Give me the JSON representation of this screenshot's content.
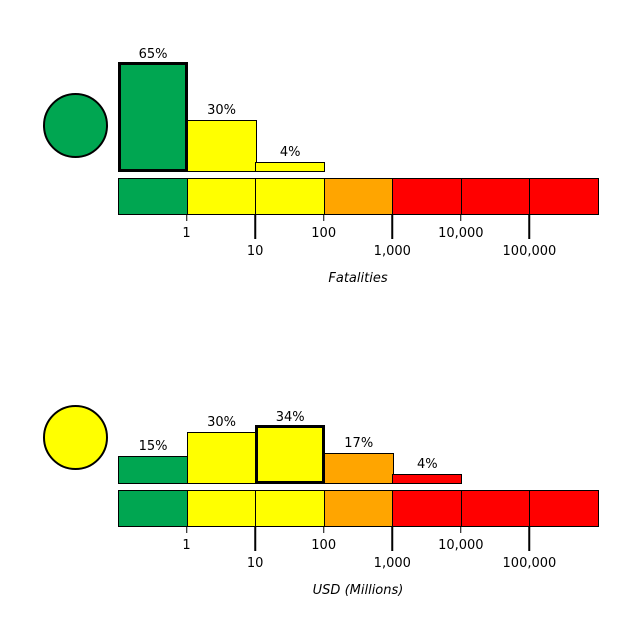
{
  "colors": {
    "green": "#00a651",
    "yellow": "#ffff00",
    "orange": "#ffa500",
    "red": "#ff0000",
    "outline": "#000000"
  },
  "chart_data": [
    {
      "type": "bar",
      "id": "fatalities",
      "xlabel": "Fatalities",
      "x_scale": "log",
      "tick_labels": [
        "1",
        "10",
        "100",
        "1,000",
        "10,000",
        "100,000"
      ],
      "scale_segments": [
        "green",
        "yellow",
        "yellow",
        "orange",
        "red",
        "red",
        "red"
      ],
      "indicator_color": "green",
      "bars": [
        {
          "label": "65%",
          "value": 65,
          "segment": 0,
          "color": "green",
          "highlighted": true
        },
        {
          "label": "30%",
          "value": 30,
          "segment": 1,
          "color": "yellow",
          "highlighted": false
        },
        {
          "label": "4%",
          "value": 4,
          "segment": 2,
          "color": "yellow",
          "highlighted": false
        }
      ]
    },
    {
      "type": "bar",
      "id": "usd_millions",
      "xlabel": "USD (Millions)",
      "x_scale": "log",
      "tick_labels": [
        "1",
        "10",
        "100",
        "1,000",
        "10,000",
        "100,000"
      ],
      "scale_segments": [
        "green",
        "yellow",
        "yellow",
        "orange",
        "red",
        "red",
        "red"
      ],
      "indicator_color": "yellow",
      "bars": [
        {
          "label": "15%",
          "value": 15,
          "segment": 0,
          "color": "green",
          "highlighted": false
        },
        {
          "label": "30%",
          "value": 30,
          "segment": 1,
          "color": "yellow",
          "highlighted": false
        },
        {
          "label": "34%",
          "value": 34,
          "segment": 2,
          "color": "yellow",
          "highlighted": true
        },
        {
          "label": "17%",
          "value": 17,
          "segment": 3,
          "color": "orange",
          "highlighted": false
        },
        {
          "label": "4%",
          "value": 4,
          "segment": 4,
          "color": "red",
          "highlighted": false
        }
      ]
    }
  ]
}
